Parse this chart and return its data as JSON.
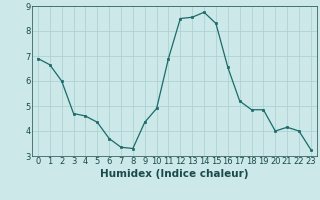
{
  "x": [
    0,
    1,
    2,
    3,
    4,
    5,
    6,
    7,
    8,
    9,
    10,
    11,
    12,
    13,
    14,
    15,
    16,
    17,
    18,
    19,
    20,
    21,
    22,
    23
  ],
  "y": [
    6.9,
    6.65,
    6.0,
    4.7,
    4.6,
    4.35,
    3.7,
    3.35,
    3.3,
    4.35,
    4.9,
    6.9,
    8.5,
    8.55,
    8.75,
    8.3,
    6.55,
    5.2,
    4.85,
    4.85,
    4.0,
    4.15,
    4.0,
    3.25
  ],
  "xlabel": "Humidex (Indice chaleur)",
  "ylim": [
    3.0,
    9.0
  ],
  "xlim_min": -0.5,
  "xlim_max": 23.5,
  "bg_color": "#cce8e8",
  "plot_bg_color": "#cce8e8",
  "line_color": "#1a6b6b",
  "marker_color": "#1a6b6b",
  "grid_color": "#aacece",
  "yticks": [
    3,
    4,
    5,
    6,
    7,
    8,
    9
  ],
  "xticks": [
    0,
    1,
    2,
    3,
    4,
    5,
    6,
    7,
    8,
    9,
    10,
    11,
    12,
    13,
    14,
    15,
    16,
    17,
    18,
    19,
    20,
    21,
    22,
    23
  ],
  "xtick_labels": [
    "0",
    "1",
    "2",
    "3",
    "4",
    "5",
    "6",
    "7",
    "8",
    "9",
    "10",
    "11",
    "12",
    "13",
    "14",
    "15",
    "16",
    "17",
    "18",
    "19",
    "20",
    "21",
    "22",
    "23"
  ],
  "font_color": "#1a4a4a",
  "xlabel_fontsize": 7.5,
  "tick_fontsize": 6.0
}
